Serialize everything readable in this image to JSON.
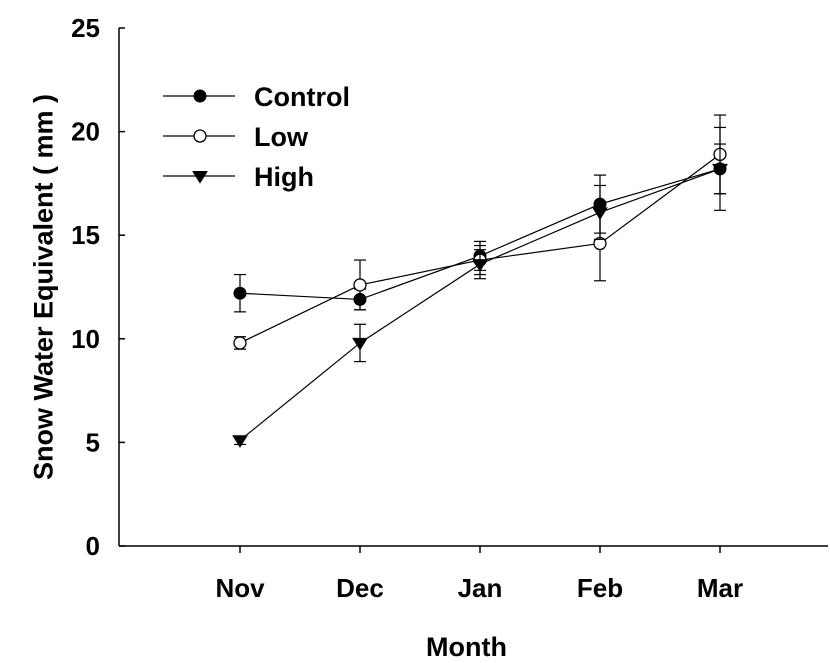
{
  "chart_data": {
    "type": "line",
    "title": "",
    "xlabel": "Month",
    "ylabel": "Snow Water Equivalent ( mm )",
    "categories": [
      "Nov",
      "Dec",
      "Jan",
      "Feb",
      "Mar"
    ],
    "ylim": [
      0,
      25
    ],
    "yticks": [
      "0",
      "5",
      "10",
      "15",
      "20",
      "25"
    ],
    "grid": false,
    "legend_position": "top-left",
    "series": [
      {
        "name": "Control",
        "marker": "filled-circle",
        "values": [
          12.2,
          11.9,
          14.0,
          16.5,
          18.2
        ],
        "errors": [
          0.9,
          0.5,
          0.7,
          1.4,
          1.2
        ]
      },
      {
        "name": "Low",
        "marker": "open-circle",
        "values": [
          9.8,
          12.6,
          13.8,
          14.6,
          18.9
        ],
        "errors": [
          0.3,
          1.2,
          0.7,
          1.8,
          1.9
        ]
      },
      {
        "name": "High",
        "marker": "filled-triangle-down",
        "values": [
          5.1,
          9.8,
          13.6,
          16.1,
          18.2
        ],
        "errors": [
          0.2,
          0.9,
          0.7,
          1.3,
          2.0
        ]
      }
    ]
  }
}
